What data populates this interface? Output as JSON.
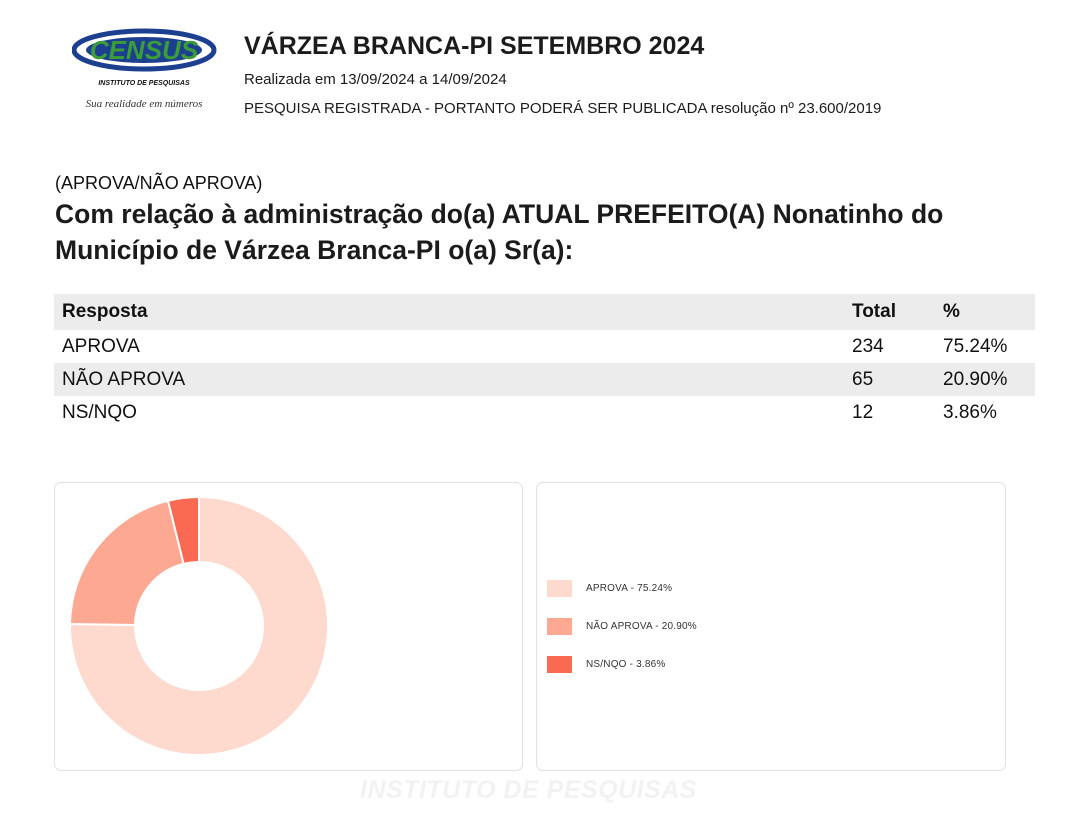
{
  "header": {
    "logo_text": "CENSUS",
    "logo_subtitle": "INSTITUTO DE PESQUISAS",
    "logo_slogan": "Sua realidade em números",
    "title": "VÁRZEA BRANCA-PI SETEMBRO 2024",
    "subtitle": "Realizada em 13/09/2024 a 14/09/2024",
    "registration": "PESQUISA REGISTRADA - PORTANTO PODERÁ SER PUBLICADA resolução nº 23.600/2019"
  },
  "question": {
    "tag": "(APROVA/NÃO APROVA)",
    "text": "Com relação à administração do(a) ATUAL PREFEITO(A) Nonatinho do Município de Várzea Branca-PI o(a) Sr(a):"
  },
  "table": {
    "headers": [
      "Resposta",
      "Total",
      "%"
    ],
    "rows": [
      [
        "APROVA",
        "234",
        "75.24%"
      ],
      [
        "NÃO APROVA",
        "65",
        "20.90%"
      ],
      [
        "NS/NQO",
        "12",
        "3.86%"
      ]
    ]
  },
  "legend": [
    "APROVA - 75.24%",
    "NÃO APROVA - 20.90%",
    "NS/NQO - 3.86%"
  ],
  "watermark": "INSTITUTO DE PESQUISAS",
  "colors": {
    "slice1": "#fdd9ce",
    "slice2": "#fca893",
    "slice3": "#fa6a52",
    "logo_blue": "#1d3f8f",
    "logo_green": "#3a9d3a"
  },
  "chart_data": {
    "type": "pie",
    "categories": [
      "APROVA",
      "NÃO APROVA",
      "NS/NQO"
    ],
    "values": [
      75.24,
      20.9,
      3.86
    ],
    "counts": [
      234,
      65,
      12
    ],
    "legend_position": "right"
  }
}
